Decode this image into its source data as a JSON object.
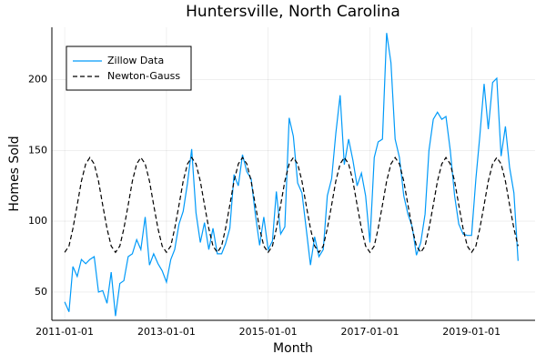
{
  "chart_data": {
    "type": "line",
    "title": "Huntersville, North Carolina",
    "x_label": "Month",
    "y_label": "Homes Sold",
    "x": [
      "2011-01-01",
      "2011-02-01",
      "2011-03-01",
      "2011-04-01",
      "2011-05-01",
      "2011-06-01",
      "2011-07-01",
      "2011-08-01",
      "2011-09-01",
      "2011-10-01",
      "2011-11-01",
      "2011-12-01",
      "2012-01-01",
      "2012-02-01",
      "2012-03-01",
      "2012-04-01",
      "2012-05-01",
      "2012-06-01",
      "2012-07-01",
      "2012-08-01",
      "2012-09-01",
      "2012-10-01",
      "2012-11-01",
      "2012-12-01",
      "2013-01-01",
      "2013-02-01",
      "2013-03-01",
      "2013-04-01",
      "2013-05-01",
      "2013-06-01",
      "2013-07-01",
      "2013-08-01",
      "2013-09-01",
      "2013-10-01",
      "2013-11-01",
      "2013-12-01",
      "2014-01-01",
      "2014-02-01",
      "2014-03-01",
      "2014-04-01",
      "2014-05-01",
      "2014-06-01",
      "2014-07-01",
      "2014-08-01",
      "2014-09-01",
      "2014-10-01",
      "2014-11-01",
      "2014-12-01",
      "2015-01-01",
      "2015-02-01",
      "2015-03-01",
      "2015-04-01",
      "2015-05-01",
      "2015-06-01",
      "2015-07-01",
      "2015-08-01",
      "2015-09-01",
      "2015-10-01",
      "2015-11-01",
      "2015-12-01",
      "2016-01-01",
      "2016-02-01",
      "2016-03-01",
      "2016-04-01",
      "2016-05-01",
      "2016-06-01",
      "2016-07-01",
      "2016-08-01",
      "2016-09-01",
      "2016-10-01",
      "2016-11-01",
      "2016-12-01",
      "2017-01-01",
      "2017-02-01",
      "2017-03-01",
      "2017-04-01",
      "2017-05-01",
      "2017-06-01",
      "2017-07-01",
      "2017-08-01",
      "2017-09-01",
      "2017-10-01",
      "2017-11-01",
      "2017-12-01",
      "2018-01-01",
      "2018-02-01",
      "2018-03-01",
      "2018-04-01",
      "2018-05-01",
      "2018-06-01",
      "2018-07-01",
      "2018-08-01",
      "2018-09-01",
      "2018-10-01",
      "2018-11-01",
      "2018-12-01",
      "2019-01-01",
      "2019-02-01",
      "2019-03-01",
      "2019-04-01",
      "2019-05-01",
      "2019-06-01",
      "2019-07-01",
      "2019-08-01",
      "2019-09-01",
      "2019-10-01",
      "2019-11-01",
      "2019-12-01"
    ],
    "series": [
      {
        "name": "Zillow Data",
        "color": "#009af9",
        "linestyle": "solid",
        "values": [
          43,
          36,
          68,
          61,
          73,
          70,
          73,
          75,
          50,
          51,
          42,
          64,
          33,
          56,
          58,
          75,
          77,
          87,
          80,
          103,
          69,
          77,
          70,
          65,
          57,
          73,
          80,
          98,
          107,
          127,
          151,
          106,
          85,
          99,
          80,
          95,
          77,
          77,
          84,
          95,
          133,
          125,
          147,
          135,
          130,
          105,
          83,
          103,
          80,
          86,
          121,
          91,
          96,
          173,
          160,
          127,
          120,
          95,
          69,
          89,
          75,
          80,
          118,
          130,
          162,
          189,
          140,
          158,
          143,
          125,
          134,
          118,
          85,
          145,
          156,
          158,
          233,
          212,
          158,
          145,
          118,
          105,
          96,
          76,
          85,
          105,
          150,
          172,
          177,
          172,
          174,
          150,
          118,
          98,
          91,
          90,
          90,
          130,
          160,
          197,
          165,
          198,
          201,
          146,
          167,
          138,
          120,
          72
        ]
      },
      {
        "name": "Newton-Gauss",
        "color": "#000000",
        "linestyle": "dashed",
        "values": [
          78,
          82.5,
          94.8,
          111.5,
          128.3,
          140.5,
          145,
          140.5,
          128.3,
          111.5,
          94.8,
          82.5,
          78,
          82.5,
          94.8,
          111.5,
          128.3,
          140.5,
          145,
          140.5,
          128.3,
          111.5,
          94.8,
          82.5,
          78,
          82.5,
          94.8,
          111.5,
          128.3,
          140.5,
          145,
          140.5,
          128.3,
          111.5,
          94.8,
          82.5,
          78,
          82.5,
          94.8,
          111.5,
          128.3,
          140.5,
          145,
          140.5,
          128.3,
          111.5,
          94.8,
          82.5,
          78,
          82.5,
          94.8,
          111.5,
          128.3,
          140.5,
          145,
          140.5,
          128.3,
          111.5,
          94.8,
          82.5,
          78,
          82.5,
          94.8,
          111.5,
          128.3,
          140.5,
          145,
          140.5,
          128.3,
          111.5,
          94.8,
          82.5,
          78,
          82.5,
          94.8,
          111.5,
          128.3,
          140.5,
          145,
          140.5,
          128.3,
          111.5,
          94.8,
          82.5,
          78,
          82.5,
          94.8,
          111.5,
          128.3,
          140.5,
          145,
          140.5,
          128.3,
          111.5,
          94.8,
          82.5,
          78,
          82.5,
          94.8,
          111.5,
          128.3,
          140.5,
          145,
          140.5,
          128.3,
          111.5,
          94.8,
          82.5
        ]
      }
    ],
    "xlim": [
      "2010-10-01",
      "2020-04-01"
    ],
    "xticks": [
      "2011-01-01",
      "2013-01-01",
      "2015-01-01",
      "2017-01-01",
      "2019-01-01"
    ],
    "ylim": [
      30,
      237
    ],
    "yticks": [
      50,
      100,
      150,
      200
    ],
    "grid": true,
    "legend": "top-left"
  }
}
